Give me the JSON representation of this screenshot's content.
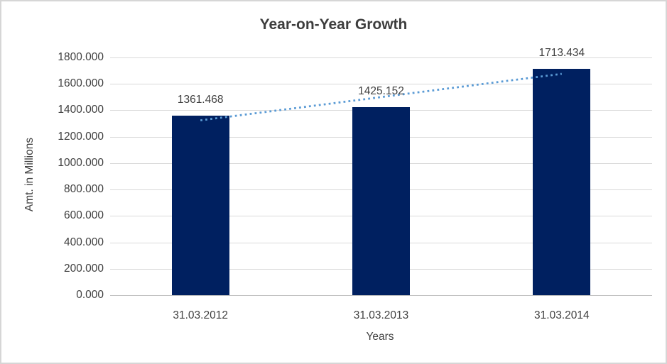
{
  "chart_data": {
    "type": "bar",
    "title": "Year-on-Year Growth",
    "xlabel": "Years",
    "ylabel": "Amt. in Millions",
    "categories": [
      "31.03.2012",
      "31.03.2013",
      "31.03.2014"
    ],
    "values": [
      1361.468,
      1425.152,
      1713.434
    ],
    "data_labels": [
      "1361.468",
      "1425.152",
      "1713.434"
    ],
    "ylim": [
      0,
      1800
    ],
    "ytick_step": 200,
    "ytick_labels": [
      "0.000",
      "200.000",
      "400.000",
      "600.000",
      "800.000",
      "1000.000",
      "1200.000",
      "1400.000",
      "1600.000",
      "1800.000"
    ],
    "grid": "horizontal-major",
    "legend": "none",
    "trendline": {
      "type": "linear",
      "style": "dotted"
    },
    "colors": {
      "bar": "#002060",
      "trendline": "#5B9BD5",
      "gridline": "#D9D9D9",
      "axis_line": "#C1C1C1",
      "text": "#404040",
      "title": "#3D3D3D",
      "background": "#FFFFFF",
      "border": "#D6D6D6"
    }
  }
}
